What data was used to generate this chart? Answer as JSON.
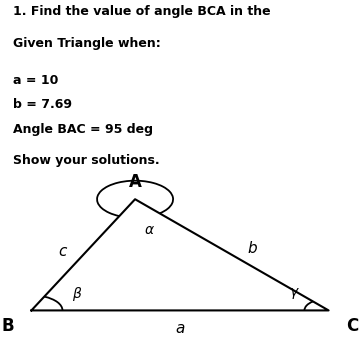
{
  "title_line1": "1. Find the value of angle BCA in the",
  "title_line2": "Given Triangle when:",
  "param_a": "a = 10",
  "param_b": "b = 7.69",
  "param_angle": "Angle BAC = 95 deg",
  "show_solutions": "Show your solutions.",
  "bg_color": "#dce8f0",
  "white": "#ffffff",
  "text_color": "#000000",
  "vertex_B": [
    0.07,
    0.22
  ],
  "vertex_A": [
    0.37,
    0.88
  ],
  "vertex_C": [
    0.93,
    0.22
  ],
  "label_A": "A",
  "label_B": "B",
  "label_C": "C",
  "label_a": "a",
  "label_b": "b",
  "label_c": "c",
  "label_alpha": "α",
  "label_beta": "β",
  "label_gamma": "γ"
}
